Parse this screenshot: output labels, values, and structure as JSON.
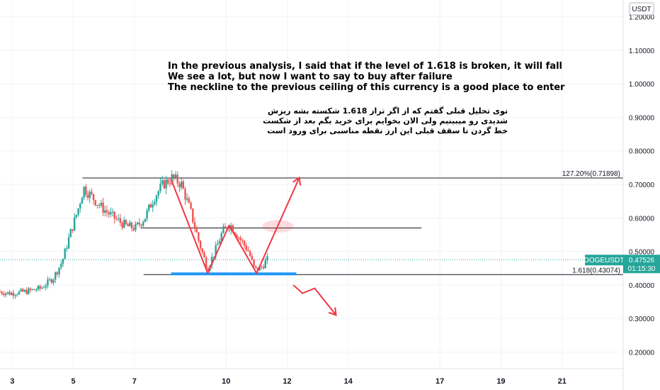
{
  "chart_data": {
    "type": "candlestick",
    "currency": "USDT",
    "symbol_tag": "DOGEUSDT",
    "last_price": "0.47526",
    "countdown": "01:15:30",
    "ylim": [
      0.15,
      1.25
    ],
    "y_ticks": [
      {
        "value": 1.2,
        "label": "1.20000"
      },
      {
        "value": 1.1,
        "label": "1.10000"
      },
      {
        "value": 1.0,
        "label": "1.00000"
      },
      {
        "value": 0.9,
        "label": "0.90000"
      },
      {
        "value": 0.8,
        "label": "0.80000"
      },
      {
        "value": 0.7,
        "label": "0.70000"
      },
      {
        "value": 0.6,
        "label": "0.60000"
      },
      {
        "value": 0.5,
        "label": "0.50000"
      },
      {
        "value": 0.4,
        "label": "0.40000"
      },
      {
        "value": 0.3,
        "label": "0.30000"
      },
      {
        "value": 0.2,
        "label": "0.20000"
      }
    ],
    "x_range_days": [
      2.6,
      23.0
    ],
    "x_ticks": [
      {
        "day": 3,
        "label": "3"
      },
      {
        "day": 5,
        "label": "5"
      },
      {
        "day": 7,
        "label": "7"
      },
      {
        "day": 10,
        "label": "10"
      },
      {
        "day": 12,
        "label": "12"
      },
      {
        "day": 14,
        "label": "14"
      },
      {
        "day": 17,
        "label": "17"
      },
      {
        "day": 19,
        "label": "19"
      },
      {
        "day": 21,
        "label": "21"
      }
    ],
    "price_path": [
      [
        2.6,
        0.38
      ],
      [
        3.0,
        0.375
      ],
      [
        3.5,
        0.38
      ],
      [
        4.0,
        0.39
      ],
      [
        4.4,
        0.42
      ],
      [
        4.7,
        0.47
      ],
      [
        4.95,
        0.55
      ],
      [
        5.2,
        0.62
      ],
      [
        5.4,
        0.69
      ],
      [
        5.7,
        0.66
      ],
      [
        6.0,
        0.63
      ],
      [
        6.4,
        0.6
      ],
      [
        6.8,
        0.575
      ],
      [
        7.1,
        0.57
      ],
      [
        7.4,
        0.6
      ],
      [
        7.7,
        0.66
      ],
      [
        8.0,
        0.7
      ],
      [
        8.3,
        0.72
      ],
      [
        8.6,
        0.7
      ],
      [
        8.9,
        0.62
      ],
      [
        9.2,
        0.52
      ],
      [
        9.45,
        0.45
      ],
      [
        9.7,
        0.5
      ],
      [
        9.95,
        0.56
      ],
      [
        10.2,
        0.58
      ],
      [
        10.5,
        0.54
      ],
      [
        10.8,
        0.5
      ],
      [
        11.0,
        0.445
      ],
      [
        11.2,
        0.45
      ],
      [
        11.4,
        0.475
      ]
    ],
    "levels": [
      {
        "label": "127.20%(0.71898)",
        "value": 0.71898,
        "x_start": 5.3,
        "x_end": 23.0
      },
      {
        "label": "1.618(0.43074)",
        "value": 0.43074,
        "x_start": 7.3,
        "x_end": 23.0
      },
      {
        "label": "",
        "value": 0.57,
        "x_start": 7.2,
        "x_end": 16.4
      }
    ],
    "support_zone": {
      "x_start": 8.2,
      "x_end": 12.3,
      "value": 0.433,
      "color": "#2196f3"
    },
    "drawings": {
      "red_zigzag": [
        [
          8.2,
          0.715
        ],
        [
          9.4,
          0.435
        ],
        [
          10.1,
          0.578
        ],
        [
          11.0,
          0.435
        ],
        [
          12.4,
          0.72
        ]
      ],
      "red_down_arrow": [
        [
          12.2,
          0.4
        ],
        [
          12.5,
          0.375
        ],
        [
          12.9,
          0.39
        ],
        [
          13.6,
          0.31
        ]
      ],
      "ellipse_center": [
        11.7,
        0.575
      ]
    },
    "colors": {
      "up": "#26a69a",
      "down": "#ef5350",
      "drawing": "#f23645",
      "tag": "#26a69a"
    }
  },
  "annotations": {
    "english": [
      "In the previous analysis, I said that if the level of 1.618 is broken, it will fall",
      "We see a lot, but now I want to say to buy after failure",
      "The neckline to the previous ceiling of this currency is a good place to enter"
    ],
    "persian": [
      "توی تحلیل قبلی گفتم که از اگر تراز 1.618 شکسته بشه ریزش",
      "شدیدی رو میبینیم ولی الان بخوایم برای خرید بگم بعد از شکست",
      "خط گردن تا سقف قبلی این ارز نقطه مناسبی برای ورود است"
    ]
  }
}
